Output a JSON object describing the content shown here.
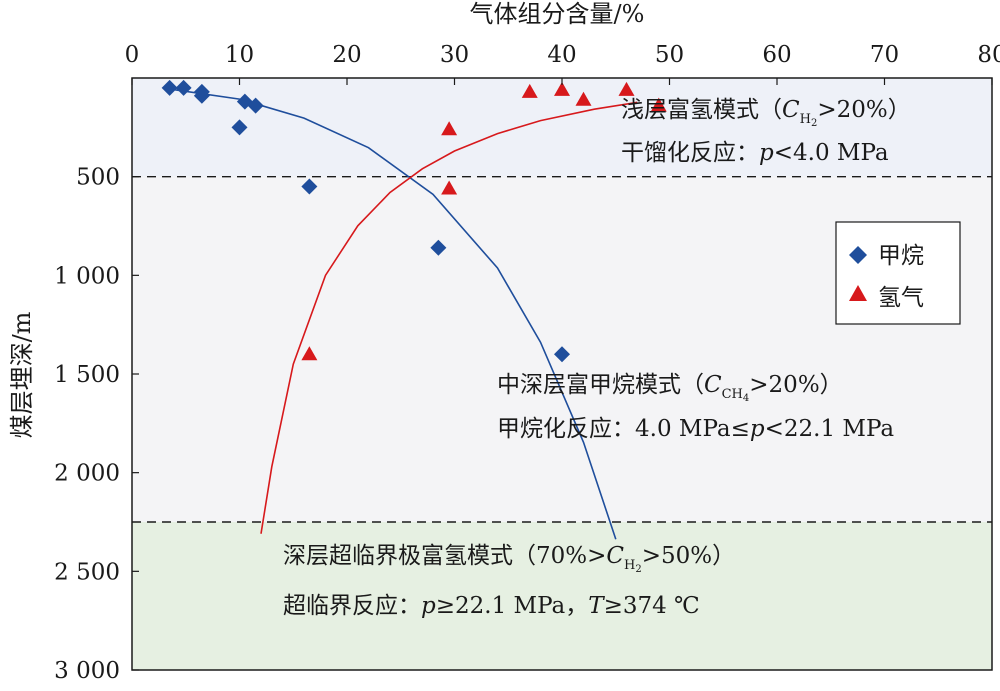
{
  "colors": {
    "methane": "#1f4e9c",
    "hydrogen": "#d7191c",
    "zone_shallow": "#eef1f8",
    "zone_middle": "#f4f4f6",
    "zone_deep": "#e6f0e2",
    "axis": "#1a1a1a"
  },
  "chart_data": {
    "type": "scatter",
    "title": "",
    "xlabel": "气体组分含量/%",
    "ylabel": "煤层埋深/m",
    "xlim": [
      0,
      80
    ],
    "ylim": [
      0,
      3000
    ],
    "y_inverted": true,
    "x_ticks": [
      0,
      10,
      20,
      30,
      40,
      50,
      60,
      70,
      80
    ],
    "x_tick_labels": [
      "0",
      "10",
      "20",
      "30",
      "40",
      "50",
      "60",
      "70",
      "80"
    ],
    "y_ticks": [
      500,
      1000,
      1500,
      2000,
      2500,
      3000
    ],
    "y_tick_labels": [
      "500",
      "1 000",
      "1 500",
      "2 000",
      "2 500",
      "3 000"
    ],
    "zone_boundaries": [
      500,
      2250
    ],
    "series": [
      {
        "name": "甲烷",
        "marker": "diamond",
        "color": "#1f4e9c",
        "points": [
          [
            3.5,
            50
          ],
          [
            4.8,
            50
          ],
          [
            6.5,
            70
          ],
          [
            6.5,
            90
          ],
          [
            10.5,
            120
          ],
          [
            11.5,
            140
          ],
          [
            10,
            250
          ],
          [
            16.5,
            550
          ],
          [
            28.5,
            860
          ],
          [
            40,
            1400
          ]
        ],
        "trend": [
          [
            4,
            60
          ],
          [
            10,
            107
          ],
          [
            16,
            203
          ],
          [
            22,
            353
          ],
          [
            28,
            590
          ],
          [
            34,
            963
          ],
          [
            38,
            1339
          ],
          [
            42,
            1846
          ],
          [
            45,
            2337
          ]
        ]
      },
      {
        "name": "氢气",
        "marker": "triangle",
        "color": "#d7191c",
        "points": [
          [
            37,
            70
          ],
          [
            40,
            60
          ],
          [
            42,
            110
          ],
          [
            46,
            60
          ],
          [
            49,
            140
          ],
          [
            29.5,
            260
          ],
          [
            29.5,
            560
          ],
          [
            16.5,
            1400
          ]
        ],
        "trend": [
          [
            12,
            2310
          ],
          [
            13,
            1970
          ],
          [
            15,
            1450
          ],
          [
            18,
            1000
          ],
          [
            21,
            749
          ],
          [
            24,
            580
          ],
          [
            27,
            460
          ],
          [
            30,
            370
          ],
          [
            34,
            282
          ],
          [
            38,
            216
          ],
          [
            43,
            158
          ],
          [
            47,
            123
          ]
        ]
      }
    ],
    "legend": {
      "position": "right",
      "entries": [
        "甲烷",
        "氢气"
      ]
    },
    "annotations": {
      "shallow": {
        "line1_prefix": "浅层富氢模式（",
        "line1_var": "C",
        "line1_sub": "H",
        "line1_sub2": "2",
        "line1_suffix": ">20%）",
        "line2_prefix": "干馏化反应：",
        "line2_var": "p",
        "line2_suffix": "<4.0 MPa"
      },
      "middle": {
        "line1_prefix": "中深层富甲烷模式（",
        "line1_var": "C",
        "line1_sub": "CH",
        "line1_sub2": "4",
        "line1_suffix": ">20%）",
        "line2_prefix": "甲烷化反应：4.0 MPa≤",
        "line2_var": "p",
        "line2_suffix": "<22.1 MPa"
      },
      "deep": {
        "line1_prefix": "深层超临界极富氢模式（70%>",
        "line1_var": "C",
        "line1_sub": "H",
        "line1_sub2": "2",
        "line1_suffix": ">50%）",
        "line2_prefix": "超临界反应：",
        "line2_var": "p",
        "line2_mid": "≥22.1 MPa，",
        "line2_var2": "T",
        "line2_suffix": "≥374 ℃"
      }
    }
  }
}
